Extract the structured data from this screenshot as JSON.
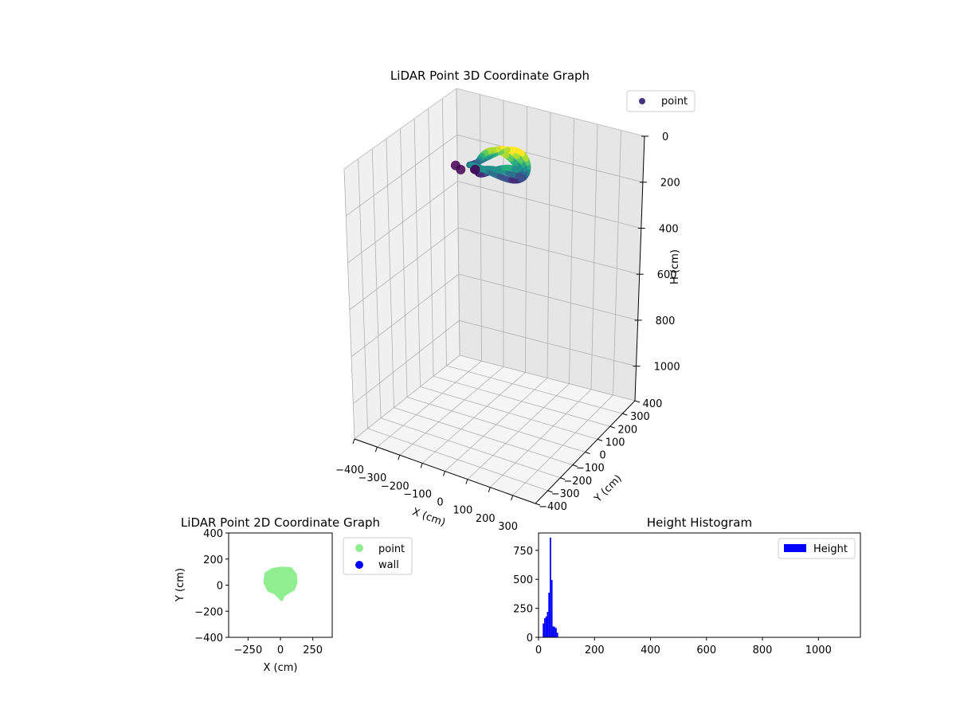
{
  "chart_data": [
    {
      "type": "scatter",
      "projection": "3d",
      "title": "LiDAR Point 3D Coordinate Graph",
      "xlabel": "X (cm)",
      "ylabel": "Y (cm)",
      "zlabel": "H (cm)",
      "xlim": [
        -400,
        400
      ],
      "ylim": [
        -400,
        400
      ],
      "zlim": [
        0,
        1150
      ],
      "z_inverted": true,
      "xticks": [
        "−400",
        "−300",
        "−200",
        "−100",
        "0",
        "100",
        "200",
        "300"
      ],
      "yticks": [
        "−400",
        "−300",
        "−200",
        "−100",
        "0",
        "100",
        "200",
        "300",
        "400"
      ],
      "zticks": [
        "0",
        "200",
        "400",
        "600",
        "800",
        "1000"
      ],
      "colormap": "viridis",
      "legend": {
        "placement": "top-right",
        "entries": [
          {
            "label": "point",
            "color": "#46327e"
          }
        ]
      },
      "grid": true,
      "series": [
        {
          "name": "point",
          "description_of_shape": "ring of points near the sensor",
          "ring": {
            "center": [
              10,
              10
            ],
            "radius_x": 110,
            "radius_y": 100
          },
          "height_range": [
            30,
            80
          ],
          "tail": [
            [
              -60,
              -40,
              70
            ],
            [
              -110,
              -60,
              75
            ],
            [
              -150,
              -30,
              80
            ]
          ]
        }
      ]
    },
    {
      "type": "scatter",
      "title": "LiDAR Point 2D Coordinate Graph",
      "xlabel": "X (cm)",
      "ylabel": "Y (cm)",
      "xlim": [
        -400,
        400
      ],
      "ylim": [
        -400,
        400
      ],
      "xticks": [
        "−250",
        "0",
        "250"
      ],
      "yticks": [
        "−400",
        "−200",
        "0",
        "200",
        "400"
      ],
      "legend": {
        "placement": "outside-right",
        "entries": [
          {
            "label": "point",
            "color": "#90ee90"
          },
          {
            "label": "wall",
            "color": "#0000ff"
          }
        ]
      },
      "series": [
        {
          "name": "point",
          "color": "#90ee90",
          "outline": [
            [
              -120,
              20
            ],
            [
              -110,
              90
            ],
            [
              -60,
              120
            ],
            [
              10,
              130
            ],
            [
              80,
              125
            ],
            [
              115,
              80
            ],
            [
              120,
              20
            ],
            [
              100,
              -30
            ],
            [
              50,
              -60
            ],
            [
              20,
              -80
            ],
            [
              10,
              -110
            ],
            [
              -10,
              -90
            ],
            [
              -40,
              -60
            ],
            [
              -90,
              -40
            ]
          ]
        },
        {
          "name": "wall",
          "color": "#0000ff",
          "points": []
        }
      ]
    },
    {
      "type": "bar",
      "subtype": "histogram",
      "title": "Height Histogram",
      "xlabel": "",
      "ylabel": "",
      "xlim": [
        0,
        1150
      ],
      "ylim": [
        0,
        900
      ],
      "xticks": [
        "0",
        "200",
        "400",
        "600",
        "800",
        "1000"
      ],
      "yticks": [
        "0",
        "250",
        "500",
        "750"
      ],
      "legend": {
        "placement": "top-right",
        "entries": [
          {
            "label": "Height",
            "color": "#0000ff"
          }
        ]
      },
      "bin_width": 5,
      "series": [
        {
          "name": "Height",
          "color": "#0000ff",
          "bins": [
            {
              "x": 15,
              "value": 120
            },
            {
              "x": 20,
              "value": 165
            },
            {
              "x": 25,
              "value": 180
            },
            {
              "x": 30,
              "value": 220
            },
            {
              "x": 35,
              "value": 385
            },
            {
              "x": 40,
              "value": 860
            },
            {
              "x": 45,
              "value": 495
            },
            {
              "x": 50,
              "value": 95
            },
            {
              "x": 55,
              "value": 90
            },
            {
              "x": 60,
              "value": 80
            },
            {
              "x": 65,
              "value": 40
            }
          ]
        }
      ]
    }
  ]
}
